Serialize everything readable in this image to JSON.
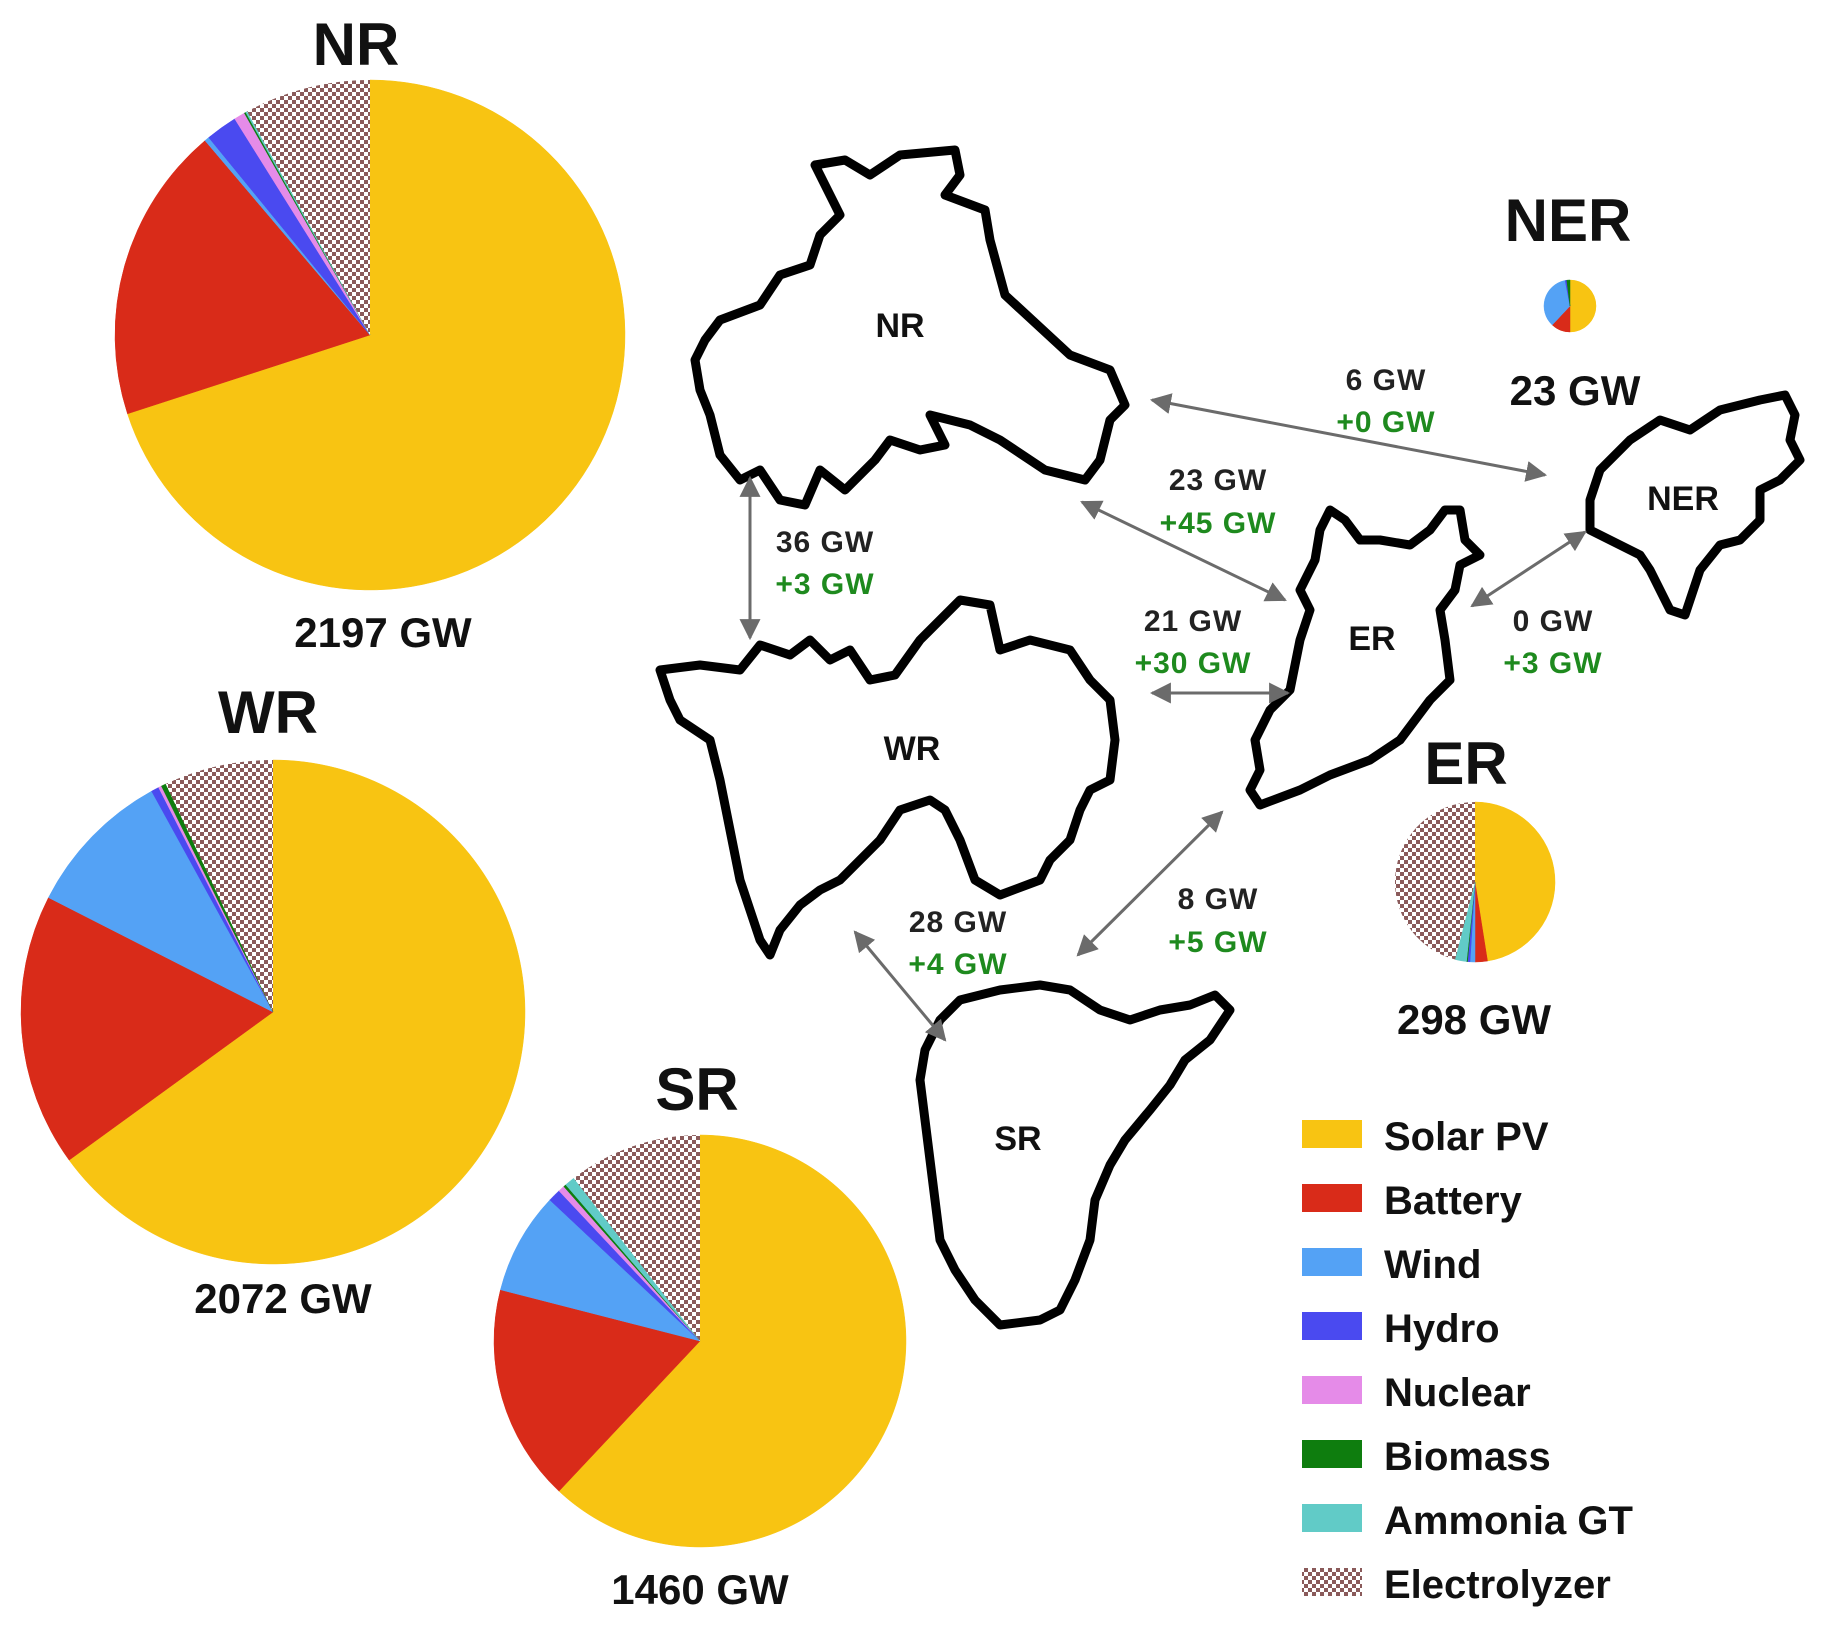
{
  "colors": {
    "Solar PV": "#F8C412",
    "Battery": "#D92B19",
    "Wind": "#54A2F5",
    "Hydro": "#4A4AF0",
    "Nuclear": "#E58BE8",
    "Biomass": "#0E7D0E",
    "Ammonia GT": "#61CBC7",
    "Electrolyzer": "pattern"
  },
  "chart_data": {
    "type": "pie",
    "technologies": [
      "Solar PV",
      "Battery",
      "Wind",
      "Hydro",
      "Nuclear",
      "Biomass",
      "Ammonia GT",
      "Electrolyzer"
    ],
    "regions": [
      {
        "name": "NR",
        "total_label": "2197 GW",
        "total_gw": 2197,
        "shares": {
          "Solar PV": 70.0,
          "Battery": 18.8,
          "Wind": 0.3,
          "Hydro": 2.0,
          "Nuclear": 0.7,
          "Biomass": 0.1,
          "Ammonia GT": 0.1,
          "Electrolyzer": 8.0
        }
      },
      {
        "name": "WR",
        "total_label": "2072 GW",
        "total_gw": 2072,
        "shares": {
          "Solar PV": 65.0,
          "Battery": 17.5,
          "Wind": 9.5,
          "Hydro": 0.5,
          "Nuclear": 0.2,
          "Biomass": 0.3,
          "Ammonia GT": 0.0,
          "Electrolyzer": 7.0
        }
      },
      {
        "name": "SR",
        "total_label": "1460 GW",
        "total_gw": 1460,
        "shares": {
          "Solar PV": 62.0,
          "Battery": 17.0,
          "Wind": 8.0,
          "Hydro": 1.0,
          "Nuclear": 0.5,
          "Biomass": 0.2,
          "Ammonia GT": 0.8,
          "Electrolyzer": 10.5
        }
      },
      {
        "name": "ER",
        "total_label": "298 GW",
        "total_gw": 298,
        "shares": {
          "Solar PV": 47.5,
          "Battery": 2.5,
          "Wind": 1.0,
          "Hydro": 0.5,
          "Nuclear": 0.0,
          "Biomass": 0.2,
          "Ammonia GT": 2.3,
          "Electrolyzer": 46.0
        }
      },
      {
        "name": "NER",
        "total_label": "23 GW",
        "total_gw": 23,
        "shares": {
          "Solar PV": 50.0,
          "Battery": 12.0,
          "Wind": 35.0,
          "Hydro": 1.0,
          "Nuclear": 0.0,
          "Biomass": 2.0,
          "Ammonia GT": 0.0,
          "Electrolyzer": 0.0
        }
      }
    ],
    "transmission": [
      {
        "between": [
          "NR",
          "WR"
        ],
        "existing": "36 GW",
        "added": "+3 GW"
      },
      {
        "between": [
          "NR",
          "NER"
        ],
        "existing": "6 GW",
        "added": "+0 GW"
      },
      {
        "between": [
          "NR",
          "ER"
        ],
        "existing": "23 GW",
        "added": "+45 GW"
      },
      {
        "between": [
          "WR",
          "ER"
        ],
        "existing": "21 GW",
        "added": "+30 GW"
      },
      {
        "between": [
          "ER",
          "NER"
        ],
        "existing": "0 GW",
        "added": "+3 GW"
      },
      {
        "between": [
          "WR",
          "SR"
        ],
        "existing": "28 GW",
        "added": "+4 GW"
      },
      {
        "between": [
          "ER",
          "SR"
        ],
        "existing": "8 GW",
        "added": "+5 GW"
      }
    ],
    "legend": [
      "Solar PV",
      "Battery",
      "Wind",
      "Hydro",
      "Nuclear",
      "Biomass",
      "Ammonia GT",
      "Electrolyzer"
    ]
  },
  "map_labels": {
    "NR": "NR",
    "WR": "WR",
    "SR": "SR",
    "ER": "ER",
    "NER": "NER"
  }
}
